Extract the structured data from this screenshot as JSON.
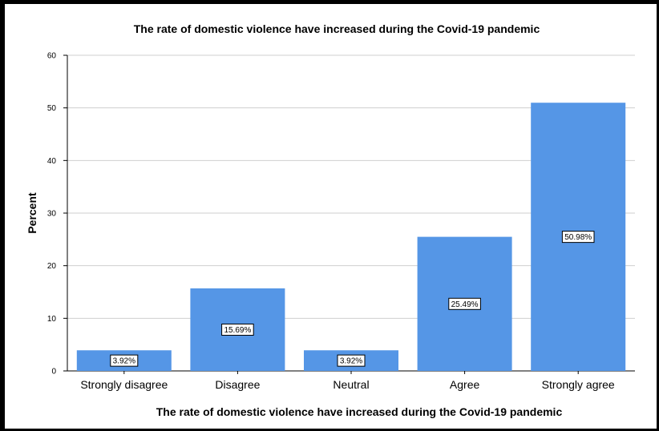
{
  "chart_data": {
    "type": "bar",
    "title": "The rate of domestic violence have increased during the Covid-19 pandemic",
    "xlabel": "The rate of domestic violence have increased during the Covid-19 pandemic",
    "ylabel": "Percent",
    "categories": [
      "Strongly disagree",
      "Disagree",
      "Neutral",
      "Agree",
      "Strongly agree"
    ],
    "values": [
      3.92,
      15.69,
      3.92,
      25.49,
      50.98
    ],
    "data_labels": [
      "3.92%",
      "15.69%",
      "3.92%",
      "25.49%",
      "50.98%"
    ],
    "ylim": [
      0,
      60
    ],
    "yticks": [
      0,
      10,
      20,
      30,
      40,
      50,
      60
    ],
    "grid": "horizontal",
    "bar_color": "#5596e6",
    "legend": "none"
  }
}
